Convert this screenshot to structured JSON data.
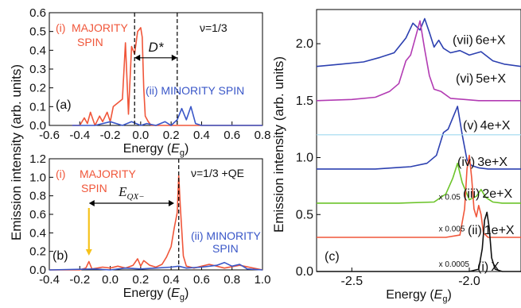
{
  "chart_data": [
    {
      "panel": "a",
      "type": "line",
      "panel_label": "(a)",
      "annotation_top_right": "ν=1/3",
      "xlabel_text": "Energy (",
      "xlabel_symbol": "E",
      "xlabel_sub": "g",
      "xlabel_close": ")",
      "xlim": [
        -0.6,
        0.8
      ],
      "ylim": [
        0,
        0.6
      ],
      "xticks": [
        "-0.6",
        "-0.4",
        "-0.2",
        "0.0",
        "0.2",
        "0.4",
        "0.6",
        "0.8"
      ],
      "yticks": [
        "0.0",
        "0.1",
        "0.2",
        "0.3",
        "0.4",
        "0.5",
        "0.6"
      ],
      "ytick_values": [
        0,
        0.1,
        0.2,
        0.3,
        0.4,
        0.5,
        0.6
      ],
      "xtick_values": [
        -0.6,
        -0.4,
        -0.2,
        0.0,
        0.2,
        0.4,
        0.6,
        0.8
      ],
      "vlines": [
        -0.04,
        0.24
      ],
      "gap_label": "D*",
      "gap_from": -0.04,
      "gap_to": 0.24,
      "labels": {
        "majority_index": "(i)",
        "majority_line1": "MAJORITY",
        "majority_line2": "SPIN",
        "minority": "(ii) MINORITY SPIN"
      },
      "series": [
        {
          "name": "MAJORITY SPIN",
          "color": "#f0563a",
          "x": [
            -0.45,
            -0.4,
            -0.37,
            -0.35,
            -0.33,
            -0.3,
            -0.27,
            -0.25,
            -0.22,
            -0.2,
            -0.18,
            -0.15,
            -0.12,
            -0.1,
            -0.08,
            -0.06,
            -0.04,
            -0.02,
            0.0,
            0.01,
            0.02,
            0.03,
            0.05,
            0.07,
            0.09,
            0.12,
            0.16,
            0.2,
            0.25,
            0.3,
            0.4,
            0.5,
            0.6,
            0.8
          ],
          "y": [
            0.0,
            0.0,
            0.04,
            0.01,
            0.07,
            0.0,
            0.05,
            0.02,
            0.07,
            0.02,
            0.1,
            0.12,
            0.14,
            0.44,
            0.06,
            0.42,
            0.38,
            0.5,
            0.52,
            0.47,
            0.2,
            0.05,
            0.02,
            0.0,
            0.0,
            0.0,
            0.0,
            0.0,
            0.0,
            0.0,
            0.0,
            0.0,
            0.0,
            0.0
          ]
        },
        {
          "name": "MINORITY SPIN",
          "color": "#3a57c8",
          "x": [
            -0.45,
            -0.3,
            -0.2,
            -0.12,
            -0.06,
            0.0,
            0.04,
            0.1,
            0.16,
            0.2,
            0.24,
            0.27,
            0.3,
            0.33,
            0.36,
            0.4,
            0.5,
            0.6,
            0.7,
            0.8
          ],
          "y": [
            0.0,
            0.0,
            0.02,
            0.0,
            0.02,
            0.0,
            0.01,
            0.0,
            0.02,
            0.0,
            0.03,
            0.09,
            0.03,
            0.1,
            0.01,
            0.0,
            0.0,
            0.0,
            0.0,
            0.0
          ]
        }
      ]
    },
    {
      "panel": "b",
      "type": "line",
      "panel_label": "(b)",
      "annotation_top_right": "ν=1/3 +QE",
      "xlabel_text": "Energy (",
      "xlabel_symbol": "E",
      "xlabel_sub": "g",
      "xlabel_close": ")",
      "xlim": [
        -0.4,
        1.0
      ],
      "ylim": [
        0,
        1.2
      ],
      "xticks": [
        "-0.4",
        "-0.2",
        "0.0",
        "0.2",
        "0.4",
        "0.6",
        "0.8",
        "1.0"
      ],
      "xtick_values": [
        -0.4,
        -0.2,
        0.0,
        0.2,
        0.4,
        0.6,
        0.8,
        1.0
      ],
      "yticks": [
        "0.0",
        "0.2",
        "0.4",
        "0.6",
        "0.8",
        "1.0",
        "1.2"
      ],
      "ytick_values": [
        0,
        0.2,
        0.4,
        0.6,
        0.8,
        1.0,
        1.2
      ],
      "vlines": [
        0.45
      ],
      "gap_label_symbol": "E",
      "gap_label_sub": "QX−",
      "gap_from": -0.14,
      "gap_to": 0.42,
      "arrow_x": -0.14,
      "labels": {
        "majority_index": "(i)",
        "majority_line1": "MAJORITY",
        "majority_line2": "SPIN",
        "minority_line1": "(ii) MINORITY",
        "minority_line2": "SPIN"
      },
      "series": [
        {
          "name": "MAJORITY SPIN",
          "color": "#f0563a",
          "x": [
            -0.4,
            -0.2,
            -0.16,
            -0.14,
            -0.12,
            -0.05,
            0.0,
            0.05,
            0.1,
            0.15,
            0.18,
            0.2,
            0.22,
            0.26,
            0.3,
            0.34,
            0.37,
            0.4,
            0.42,
            0.44,
            0.45,
            0.46,
            0.48,
            0.5,
            0.55,
            0.65,
            0.75,
            0.85,
            1.0
          ],
          "y": [
            0.0,
            0.0,
            0.02,
            0.09,
            0.01,
            0.03,
            0.02,
            0.04,
            0.02,
            0.05,
            0.12,
            0.04,
            0.1,
            0.05,
            0.03,
            0.06,
            0.14,
            0.25,
            0.45,
            0.62,
            1.02,
            0.7,
            0.15,
            0.04,
            0.02,
            0.06,
            0.02,
            0.05,
            0.0
          ]
        },
        {
          "name": "MINORITY SPIN",
          "color": "#3a57c8",
          "x": [
            -0.4,
            -0.1,
            0.0,
            0.1,
            0.2,
            0.3,
            0.4,
            0.45,
            0.5,
            0.6,
            0.7,
            0.75,
            0.8,
            0.85,
            0.9,
            1.0
          ],
          "y": [
            0.0,
            0.01,
            0.0,
            0.02,
            0.01,
            0.02,
            0.03,
            0.04,
            0.02,
            0.03,
            0.05,
            0.08,
            0.04,
            0.06,
            0.01,
            0.0
          ]
        }
      ]
    },
    {
      "panel": "c",
      "type": "line",
      "panel_label": "(c)",
      "xlabel_text": "Energy (",
      "xlabel_symbol": "E",
      "xlabel_sub": "g",
      "xlabel_close": ")",
      "xlim": [
        -2.65,
        -1.78
      ],
      "ylim": [
        0,
        2.3
      ],
      "xticks": [
        "-2.5",
        "-2.0"
      ],
      "xtick_values": [
        -2.5,
        -2.0
      ],
      "yticks": [
        "0.0",
        "0.5",
        "1.0",
        "1.5",
        "2.0"
      ],
      "ytick_values": [
        0,
        0.5,
        1.0,
        1.5,
        2.0
      ],
      "hline": {
        "y": 1.2,
        "color": "#9fd9ef"
      },
      "scale_labels": [
        {
          "text": "x 0.05",
          "x": -2.13,
          "y": 0.66
        },
        {
          "text": "x 0.005",
          "x": -2.13,
          "y": 0.38
        },
        {
          "text": "x 0.0005",
          "x": -2.13,
          "y": 0.07
        }
      ],
      "series": [
        {
          "name": "(vii) 6e+X",
          "label_index": "(vii)",
          "label_text": "6e+X",
          "color": "#2c40b0",
          "baseline": 1.8,
          "x": [
            -2.65,
            -2.55,
            -2.45,
            -2.38,
            -2.32,
            -2.27,
            -2.24,
            -2.21,
            -2.19,
            -2.17,
            -2.15,
            -2.13,
            -2.11,
            -2.08,
            -2.04,
            -2.0,
            -1.95,
            -1.9,
            -1.85,
            -1.78
          ],
          "y": [
            1.8,
            1.82,
            1.84,
            1.88,
            1.92,
            2.05,
            2.18,
            2.12,
            2.22,
            2.1,
            1.97,
            2.03,
            1.96,
            1.92,
            1.94,
            1.9,
            1.93,
            1.85,
            1.82,
            1.8
          ]
        },
        {
          "name": "(vi) 5e+X",
          "label_index": "(vi)",
          "label_text": "5e+X",
          "color": "#b23bb3",
          "baseline": 1.5,
          "x": [
            -2.65,
            -2.5,
            -2.4,
            -2.34,
            -2.3,
            -2.27,
            -2.25,
            -2.23,
            -2.21,
            -2.19,
            -2.17,
            -2.15,
            -2.12,
            -2.08,
            -2.02,
            -1.96,
            -1.9,
            -1.78
          ],
          "y": [
            1.5,
            1.51,
            1.53,
            1.58,
            1.65,
            1.85,
            1.9,
            2.05,
            2.2,
            1.95,
            1.72,
            1.6,
            1.58,
            1.52,
            1.51,
            1.5,
            1.5,
            1.5
          ]
        },
        {
          "name": "(v) 4e+X",
          "label_index": "(v)",
          "label_text": "4e+X",
          "color": "#2c40b0",
          "baseline": 0.9,
          "x": [
            -2.65,
            -2.4,
            -2.25,
            -2.18,
            -2.14,
            -2.11,
            -2.09,
            -2.07,
            -2.05,
            -2.03,
            -2.01,
            -1.99,
            -1.96,
            -1.92,
            -1.85,
            -1.78
          ],
          "y": [
            0.9,
            0.9,
            0.92,
            0.95,
            1.02,
            1.22,
            1.25,
            1.35,
            1.45,
            1.2,
            0.98,
            0.93,
            0.91,
            0.9,
            0.9,
            0.9
          ]
        },
        {
          "name": "(iv) 3e+X",
          "label_index": "(iv)",
          "label_text": "3e+X",
          "color": "#2c40b0",
          "hidden_trace": true,
          "baseline": 0.9,
          "x": [],
          "y": []
        },
        {
          "name": "(iii) 2e+X",
          "label_index": "(iii)",
          "label_text": "2e+X",
          "color": "#6cc42a",
          "baseline": 0.6,
          "x": [
            -2.65,
            -2.3,
            -2.15,
            -2.1,
            -2.07,
            -2.05,
            -2.03,
            -2.0,
            -1.97,
            -1.95,
            -1.93,
            -1.9,
            -1.86,
            -1.78
          ],
          "y": [
            0.6,
            0.6,
            0.61,
            0.68,
            0.82,
            0.95,
            0.78,
            0.63,
            0.66,
            0.72,
            0.65,
            0.61,
            0.6,
            0.6
          ]
        },
        {
          "name": "(ii) 1e+X",
          "label_index": "(ii)",
          "label_text": "1e+X",
          "color": "#f0563a",
          "baseline": 0.3,
          "x": [
            -2.65,
            -2.1,
            -2.04,
            -2.02,
            -2.01,
            -2.0,
            -1.99,
            -1.98,
            -1.97,
            -1.96,
            -1.95,
            -1.94,
            -1.92,
            -1.88,
            -1.78
          ],
          "y": [
            0.3,
            0.3,
            0.32,
            0.55,
            0.9,
            1.02,
            0.82,
            0.55,
            0.48,
            0.58,
            0.5,
            0.34,
            0.3,
            0.3,
            0.3
          ]
        },
        {
          "name": "(i) X",
          "label_index": "(i)",
          "label_text": "X",
          "color": "#111111",
          "baseline": 0.0,
          "x": [
            -2.65,
            -2.0,
            -1.96,
            -1.945,
            -1.935,
            -1.925,
            -1.915,
            -1.905,
            -1.89,
            -1.86,
            -1.78
          ],
          "y": [
            0,
            0,
            0.02,
            0.2,
            0.45,
            0.52,
            0.38,
            0.12,
            0.02,
            0,
            0
          ]
        }
      ]
    }
  ],
  "shared": {
    "ylabel": "Emission intensity (arb. units)"
  }
}
